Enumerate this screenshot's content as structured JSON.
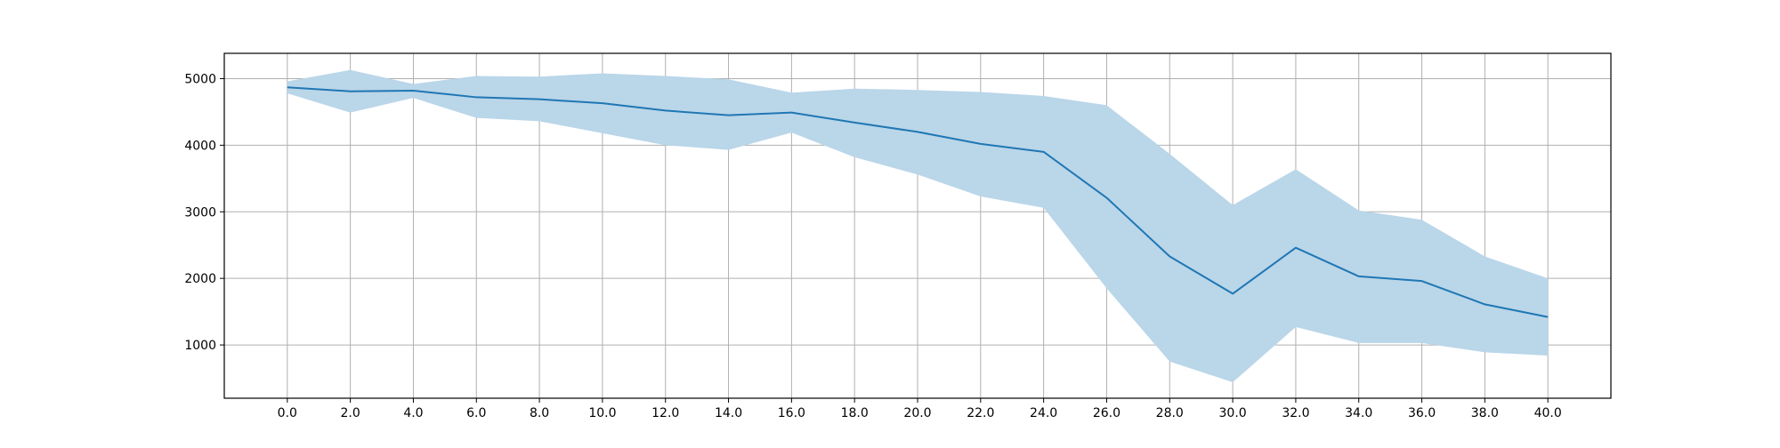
{
  "chart_data": {
    "type": "line",
    "title": "",
    "xlabel": "",
    "ylabel": "",
    "xlim": [
      -2.0,
      42.0
    ],
    "ylim": [
      200,
      5380
    ],
    "grid": true,
    "x_tick_labels": [
      "0.0",
      "2.0",
      "4.0",
      "6.0",
      "8.0",
      "10.0",
      "12.0",
      "14.0",
      "16.0",
      "18.0",
      "20.0",
      "22.0",
      "24.0",
      "26.0",
      "28.0",
      "30.0",
      "32.0",
      "34.0",
      "36.0",
      "38.0",
      "40.0"
    ],
    "y_ticks": [
      1000,
      2000,
      3000,
      4000,
      5000
    ],
    "y_tick_labels": [
      "1000",
      "2000",
      "3000",
      "4000",
      "5000"
    ],
    "x": [
      0,
      2,
      4,
      6,
      8,
      10,
      12,
      14,
      16,
      18,
      20,
      22,
      24,
      26,
      28,
      30,
      32,
      34,
      36,
      38,
      40
    ],
    "series": [
      {
        "values": [
          4870,
          4810,
          4820,
          4720,
          4690,
          4630,
          4520,
          4450,
          4490,
          4340,
          4200,
          4020,
          3900,
          3210,
          2330,
          1770,
          2460,
          2030,
          1960,
          1610,
          1420
        ],
        "lower": [
          4780,
          4490,
          4710,
          4410,
          4360,
          4180,
          4000,
          3930,
          4190,
          3820,
          3560,
          3230,
          3060,
          1850,
          750,
          440,
          1270,
          1030,
          1030,
          890,
          840
        ],
        "upper": [
          4960,
          5130,
          4920,
          5040,
          5030,
          5080,
          5040,
          4990,
          4790,
          4850,
          4830,
          4800,
          4740,
          4600,
          3870,
          3100,
          3640,
          3020,
          2880,
          2330,
          2000
        ]
      }
    ],
    "colors": {
      "line": "#1f77b4",
      "band": "#bad6e9",
      "grid": "#b0b0b0",
      "axes": "#000000"
    }
  }
}
